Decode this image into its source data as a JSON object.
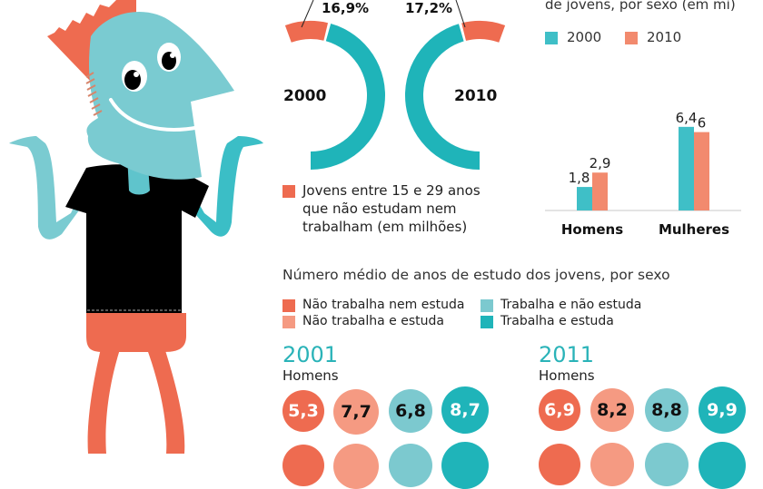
{
  "colors": {
    "coral": "#ee6b50",
    "light_coral": "#f59a82",
    "light_teal": "#7cc9cf",
    "teal": "#1fb4b9",
    "bar_teal": "#3fbfc7",
    "bar_coral": "#f28a6e",
    "shirt": "#000000",
    "skin": "#7acbd1"
  },
  "illustration": {
    "description": "Cartoon young man shrugging"
  },
  "donuts": {
    "legend_label": "Jovens entre 15 e 29 anos que não estudam nem trabalham (em milhões)",
    "legend_lines": [
      "Jovens entre 15 e 29 anos",
      "que não estudam nem",
      "trabalham (em milhões)"
    ],
    "items": [
      {
        "year": "2000",
        "pct_label": "16,9%"
      },
      {
        "year": "2010",
        "pct_label": "17,2%"
      }
    ]
  },
  "bar_section": {
    "title_partial": "de jovens, por sexo (em mi)",
    "legend": [
      {
        "label": "2000"
      },
      {
        "label": "2010"
      }
    ]
  },
  "study_section": {
    "title": "Número médio de anos de estudo dos jovens, por sexo",
    "legend": [
      {
        "label": "Não trabalha nem estuda"
      },
      {
        "label": "Não trabalha e estuda"
      },
      {
        "label": "Trabalha e não estuda"
      },
      {
        "label": "Trabalha e estuda"
      }
    ],
    "panels": [
      {
        "year": "2001",
        "group": "Homens",
        "values": [
          "5,3",
          "7,7",
          "6,8",
          "8,7"
        ]
      },
      {
        "year": "2011",
        "group": "Homens",
        "values": [
          "6,9",
          "8,2",
          "8,8",
          "9,9"
        ]
      }
    ]
  },
  "chart_data": [
    {
      "type": "pie",
      "title": "Jovens entre 15 e 29 anos que não estudam nem trabalham",
      "categories": [
        "2000",
        "2010"
      ],
      "values": [
        16.9,
        17.2
      ],
      "unit": "%"
    },
    {
      "type": "bar",
      "title": "de jovens, por sexo (em mi)",
      "categories": [
        "Homens",
        "Mulheres"
      ],
      "series": [
        {
          "name": "2000",
          "values": [
            1.8,
            6.4
          ],
          "labels": [
            "1,8",
            "6,4"
          ]
        },
        {
          "name": "2010",
          "values": [
            2.9,
            6.0
          ],
          "labels": [
            "2,9",
            "6"
          ]
        }
      ],
      "ylim": [
        0,
        7
      ],
      "legend": "top-left"
    },
    {
      "type": "table",
      "title": "Número médio de anos de estudo dos jovens, por sexo",
      "columns": [
        "Não trabalha nem estuda",
        "Não trabalha e estuda",
        "Trabalha e não estuda",
        "Trabalha e estuda"
      ],
      "rows": [
        {
          "year": "2001",
          "group": "Homens",
          "values": [
            5.3,
            7.7,
            6.8,
            8.7
          ]
        },
        {
          "year": "2011",
          "group": "Homens",
          "values": [
            6.9,
            8.2,
            8.8,
            9.9
          ]
        }
      ]
    }
  ]
}
